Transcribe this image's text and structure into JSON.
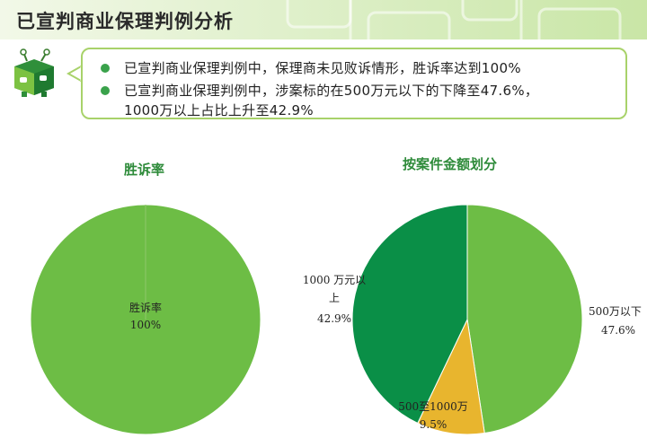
{
  "header": {
    "title": "已宣判商业保理判例分析"
  },
  "callout": {
    "bullets": [
      {
        "text": "已宣判商业保理判例中，保理商未见败诉情形，胜诉率达到100%"
      },
      {
        "line1": "已宣判商业保理判例中，涉案标的在500万元以下的下降至47.6%，",
        "line2": "1000万以上占比上升至42.9%"
      }
    ]
  },
  "colors": {
    "green_light": "#6dbd45",
    "green_dark": "#0a8f47",
    "yellow": "#e8b52e",
    "title_green": "#2e8b3a"
  },
  "chart_data": [
    {
      "type": "pie",
      "title": "胜诉率",
      "slices": [
        {
          "label": "胜诉率",
          "value": 100,
          "value_label": "100%",
          "color": "#6dbd45"
        }
      ]
    },
    {
      "type": "pie",
      "title": "按案件金额划分",
      "slices": [
        {
          "label": "500万以下",
          "value": 47.6,
          "value_label": "47.6%",
          "color": "#6dbd45"
        },
        {
          "label": "500至1000万",
          "value": 9.5,
          "value_label": "9.5%",
          "color": "#e8b52e"
        },
        {
          "label": "1000 万元以上",
          "value": 42.9,
          "value_label": "42.9%",
          "color": "#0a8f47"
        }
      ]
    }
  ]
}
